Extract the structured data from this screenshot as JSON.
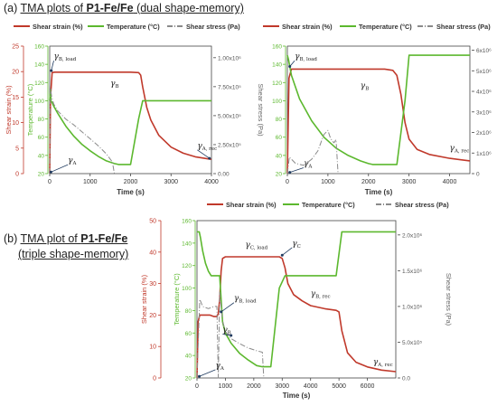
{
  "panel_a_label": {
    "prefix": "(a) ",
    "text1": "TMA plots of ",
    "bold": "P1-Fe/Fe",
    "text2": " (dual shape-memory)"
  },
  "panel_b_label": {
    "prefix": "(b) ",
    "text1": "TMA plot of ",
    "bold": "P1-Fe/Fe",
    "text2": "(triple shape-memory)"
  },
  "colors": {
    "strain": "#c0392b",
    "temperature": "#5cb82e",
    "stress": "#8a8a8a",
    "arrow": "#1f3a5f"
  },
  "chart_data": [
    {
      "id": "a1",
      "type": "line",
      "legend": [
        "Shear strain (%)",
        "Temperature (°C)",
        "Shear stress (Pa)"
      ],
      "legend_position": "top",
      "xlabel": "Time (s)",
      "xlim": [
        0,
        4000
      ],
      "xticks": [
        "0",
        "1000",
        "2000",
        "3000",
        "4000"
      ],
      "ylabel_strain": "Shear strain (%)",
      "ylim_strain": [
        0,
        25
      ],
      "yticks_strain": [
        "0",
        "5",
        "10",
        "15",
        "20",
        "25"
      ],
      "ylabel_temp": "Temperature (°C)",
      "ylim_temp": [
        20,
        160
      ],
      "yticks_temp": [
        "20",
        "40",
        "60",
        "80",
        "100",
        "120",
        "140",
        "160"
      ],
      "ylabel_stress": "Shear stress (Pa)",
      "ylim_stress": [
        0,
        1100000
      ],
      "yticks_stress": [
        "0.00",
        "2.50x10⁵",
        "5.00x10⁵",
        "7.50x10⁵",
        "1.00x10⁶"
      ],
      "series": [
        {
          "axis": "strain",
          "style": "solid",
          "x": [
            0,
            20,
            60,
            120,
            200,
            400,
            800,
            1200,
            1600,
            2000,
            2200,
            2250,
            2300,
            2400,
            2500,
            2700,
            3000,
            3300,
            3600,
            3900,
            4000
          ],
          "y": [
            0,
            15,
            19.8,
            19.9,
            19.9,
            19.9,
            19.9,
            19.9,
            19.9,
            19.9,
            19.8,
            19.3,
            17.0,
            13.0,
            10.5,
            7.5,
            5.2,
            4.0,
            3.3,
            2.9,
            2.8
          ]
        },
        {
          "axis": "temp",
          "style": "solid",
          "x": [
            0,
            20,
            30,
            60,
            100,
            200,
            400,
            600,
            800,
            1000,
            1200,
            1400,
            1600,
            1700,
            2000,
            2200,
            2300,
            2400,
            2600,
            3000,
            3500,
            4000
          ],
          "y": [
            100,
            112,
            100,
            98,
            94,
            86,
            72,
            61,
            52,
            45,
            39,
            34,
            31,
            30,
            30,
            80,
            100,
            100,
            100,
            100,
            100,
            100
          ]
        },
        {
          "axis": "stress",
          "style": "dashdot",
          "x": [
            0,
            20,
            50,
            100,
            200,
            400,
            600,
            800,
            1000,
            1200,
            1400,
            1550,
            1600
          ],
          "y": [
            0,
            740000,
            660000,
            600000,
            540000,
            470000,
            420000,
            360000,
            300000,
            240000,
            170000,
            100000,
            0
          ]
        }
      ],
      "annotations": [
        {
          "sym": "γ",
          "sub": "B, load",
          "x": 100,
          "y_strain": 22.5,
          "ax": 40,
          "ay_strain": 20.2
        },
        {
          "sym": "γ",
          "sub": "B",
          "x": 1500,
          "y_strain": 17.2
        },
        {
          "sym": "γ",
          "sub": "A",
          "x": 450,
          "y_strain": 2.1,
          "ax": 30,
          "ay_strain": 0.3
        },
        {
          "sym": "γ",
          "sub": "A, rec",
          "x": 3650,
          "y_strain": 5.0,
          "ax": 3950,
          "ay_strain": 3.0
        }
      ]
    },
    {
      "id": "a2",
      "type": "line",
      "legend": [
        "Shear strain (%)",
        "Temperature (°C)",
        "Shear stress (Pa)"
      ],
      "legend_position": "top",
      "xlabel": "Time (s)",
      "xlim": [
        0,
        4500
      ],
      "xticks": [
        "0",
        "1000",
        "2000",
        "3000",
        "4000"
      ],
      "ylim_temp": [
        20,
        160
      ],
      "yticks_temp": [
        "20",
        "40",
        "60",
        "80",
        "100",
        "120",
        "140",
        "160"
      ],
      "ylim_strain": [
        0,
        100
      ],
      "ylim_stress": [
        0,
        6200000
      ],
      "yticks_stress": [
        "0",
        "1x10⁶",
        "2x10⁶",
        "3x10⁶",
        "4x10⁶",
        "5x10⁶",
        "6x10⁶"
      ],
      "series": [
        {
          "axis": "strain",
          "style": "solid",
          "x": [
            0,
            40,
            100,
            300,
            800,
            1500,
            2000,
            2400,
            2600,
            2700,
            2800,
            2900,
            3000,
            3200,
            3500,
            4000,
            4500
          ],
          "y": [
            0,
            75,
            82,
            82,
            82,
            82,
            82,
            82,
            81,
            77,
            62,
            40,
            27,
            19,
            15,
            12,
            10
          ]
        },
        {
          "axis": "temp",
          "style": "solid",
          "x": [
            0,
            30,
            100,
            300,
            600,
            900,
            1200,
            1500,
            1800,
            2000,
            2100,
            2700,
            2900,
            3000,
            3500,
            4000,
            4500
          ],
          "y": [
            150,
            145,
            128,
            102,
            78,
            60,
            48,
            40,
            34,
            31,
            30,
            30,
            100,
            150,
            150,
            150,
            150
          ]
        },
        {
          "axis": "stress",
          "style": "dashdot",
          "x": [
            0,
            50,
            200,
            400,
            600,
            750,
            900,
            1000,
            1050,
            1100,
            1150,
            1200,
            1250
          ],
          "y": [
            0,
            800000,
            500000,
            400000,
            700000,
            1100000,
            1900000,
            2100000,
            1800000,
            1600000,
            1500000,
            1650000,
            0
          ]
        }
      ],
      "annotations": [
        {
          "sym": "γ",
          "sub": "B, load",
          "x": 180,
          "y_strain": 90,
          "ax": 60,
          "ay_strain": 84
        },
        {
          "sym": "γ",
          "sub": "B",
          "x": 1800,
          "y_strain": 67
        },
        {
          "sym": "γ",
          "sub": "A",
          "x": 400,
          "y_strain": 6,
          "ax": 60,
          "ay_strain": 1
        },
        {
          "sym": "γ",
          "sub": "A, rec",
          "x": 4000,
          "y_strain": 18
        }
      ]
    },
    {
      "id": "b",
      "type": "line",
      "legend": [
        "Shear strain (%)",
        "Temperature (°C)",
        "Shear stress (Pa)"
      ],
      "legend_position": "top",
      "xlabel": "Time (s)",
      "xlim": [
        0,
        7000
      ],
      "xticks": [
        "0",
        "1000",
        "2000",
        "3000",
        "4000",
        "5000",
        "6000"
      ],
      "ylabel_strain": "Shear strain (%)",
      "ylim_strain": [
        0,
        50
      ],
      "yticks_strain": [
        "0",
        "10",
        "20",
        "30",
        "40",
        "50"
      ],
      "ylabel_temp": "Temperature (°C)",
      "ylim_temp": [
        20,
        160
      ],
      "yticks_temp": [
        "20",
        "40",
        "60",
        "80",
        "100",
        "120",
        "140",
        "160"
      ],
      "ylabel_stress": "Shear stress (Pa)",
      "ylim_stress": [
        0,
        2200000
      ],
      "yticks_stress": [
        "0.0",
        "5.0x10⁵",
        "1.0x10⁶",
        "1.5x10⁶",
        "2.0x10⁶"
      ],
      "series": [
        {
          "axis": "strain",
          "style": "solid",
          "x": [
            0,
            40,
            100,
            150,
            300,
            450,
            600,
            700,
            750,
            800,
            850,
            900,
            1000,
            1500,
            2000,
            2500,
            2900,
            3000,
            3100,
            3200,
            3400,
            3700,
            4000,
            4500,
            4900,
            5000,
            5100,
            5300,
            5600,
            6000,
            6500,
            7000
          ],
          "y": [
            0,
            18,
            20,
            20,
            20,
            20,
            19.5,
            19.5,
            20.5,
            25,
            34,
            38,
            38.5,
            38.5,
            38.5,
            38.5,
            38.5,
            38,
            35,
            30,
            26.5,
            24.5,
            23,
            22,
            21.5,
            21,
            15,
            8,
            5,
            3.5,
            2.5,
            2
          ]
        },
        {
          "axis": "temp",
          "style": "solid",
          "x": [
            0,
            80,
            120,
            200,
            300,
            400,
            500,
            800,
            850,
            900,
            1000,
            1200,
            1500,
            1800,
            2100,
            2300,
            2500,
            2600,
            2900,
            3100,
            3500,
            4000,
            4500,
            4900,
            5100,
            5500,
            6000,
            7000
          ],
          "y": [
            150,
            150,
            145,
            133,
            122,
            115,
            111,
            111,
            90,
            70,
            60,
            51,
            42,
            36,
            31,
            30,
            30,
            30,
            100,
            111,
            111,
            111,
            111,
            111,
            150,
            150,
            150,
            150
          ]
        },
        {
          "axis": "stress",
          "style": "dashdot",
          "x": [
            0,
            100,
            200,
            400,
            600,
            700,
            750,
            800,
            900,
            1000,
            1200,
            1500,
            1800,
            2100,
            2300,
            2350
          ],
          "y": [
            0,
            1100000,
            1000000,
            970000,
            1000000,
            1000000,
            0,
            1200000,
            800000,
            650000,
            550000,
            480000,
            420000,
            380000,
            360000,
            0
          ]
        }
      ],
      "annotations": [
        {
          "sym": "γ",
          "sub": "C, load",
          "x": 1700,
          "y_strain": 41.5
        },
        {
          "sym": "γ",
          "sub": "C",
          "x": 3350,
          "y_strain": 42,
          "ax": 3000,
          "ay_strain": 39
        },
        {
          "sym": "γ",
          "sub": "B, load",
          "x": 1300,
          "y_strain": 24.5,
          "ax": 850,
          "ay_strain": 21
        },
        {
          "sym": "γ",
          "sub": "B",
          "x": 900,
          "y_strain": 14.5,
          "ax": 1200,
          "ay_strain": 13.5
        },
        {
          "sym": "γ",
          "sub": "A",
          "x": 650,
          "y_strain": 3.2,
          "ax": 80,
          "ay_strain": 0.5
        },
        {
          "sym": "γ",
          "sub": "B, rec",
          "x": 4000,
          "y_strain": 26
        },
        {
          "sym": "γ",
          "sub": "A, rec",
          "x": 6200,
          "y_strain": 4.3
        }
      ]
    }
  ]
}
